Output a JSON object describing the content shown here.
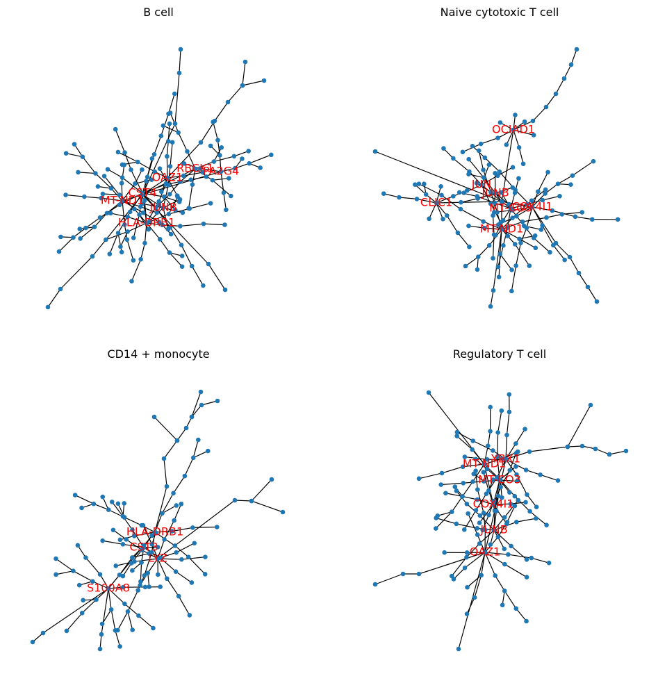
{
  "colors": {
    "node": "#1f77b4",
    "edge": "#000000",
    "label": "#ff0000",
    "background": "#ffffff"
  },
  "panels": [
    {
      "title": "B cell",
      "labels": [
        "OAZ1",
        "RBCK1",
        "PA2G4",
        "CST4",
        "MT-ND1",
        "JUNB",
        "HLA-DRB1"
      ]
    },
    {
      "title": "Naive cytotoxic T cell",
      "labels": [
        "OCIAD1",
        "JUN",
        "JUNB",
        "CLIC1",
        "MT-CO3",
        "COX4I1",
        "MT-ND1"
      ]
    },
    {
      "title": "CD14 + monocyte",
      "labels": [
        "HLA-DRB1",
        "CST3",
        "LYZ",
        "S100A8"
      ]
    },
    {
      "title": "Regulatory T cell",
      "labels": [
        "YBX1",
        "MT-ND1",
        "MT-CO3",
        "COX4I1",
        "JUNB",
        "OAZ1"
      ]
    }
  ]
}
